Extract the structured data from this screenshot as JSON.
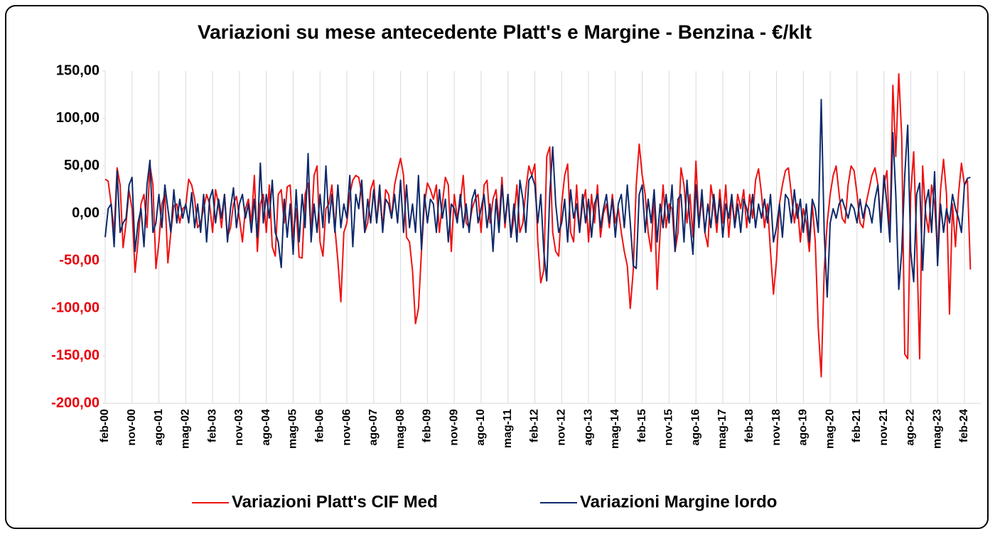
{
  "chart_data": {
    "type": "line",
    "title": "Variazioni su mese antecedente Platt's e Margine - Benzina - €/klt",
    "categories": [
      "feb-00",
      null,
      null,
      null,
      null,
      null,
      null,
      null,
      null,
      "nov-00",
      null,
      null,
      null,
      null,
      null,
      null,
      null,
      null,
      "ago-01",
      null,
      null,
      null,
      null,
      null,
      null,
      null,
      null,
      "mag-02",
      null,
      null,
      null,
      null,
      null,
      null,
      null,
      null,
      "feb-03",
      null,
      null,
      null,
      null,
      null,
      null,
      null,
      null,
      "nov-03",
      null,
      null,
      null,
      null,
      null,
      null,
      null,
      null,
      "ago-04",
      null,
      null,
      null,
      null,
      null,
      null,
      null,
      null,
      "mag-05",
      null,
      null,
      null,
      null,
      null,
      null,
      null,
      null,
      "feb-06",
      null,
      null,
      null,
      null,
      null,
      null,
      null,
      null,
      "nov-06",
      null,
      null,
      null,
      null,
      null,
      null,
      null,
      null,
      "ago-07",
      null,
      null,
      null,
      null,
      null,
      null,
      null,
      null,
      "mag-08",
      null,
      null,
      null,
      null,
      null,
      null,
      null,
      null,
      "feb-09",
      null,
      null,
      null,
      null,
      null,
      null,
      null,
      null,
      "nov-09",
      null,
      null,
      null,
      null,
      null,
      null,
      null,
      null,
      "ago-10",
      null,
      null,
      null,
      null,
      null,
      null,
      null,
      null,
      "mag-11",
      null,
      null,
      null,
      null,
      null,
      null,
      null,
      null,
      "feb-12",
      null,
      null,
      null,
      null,
      null,
      null,
      null,
      null,
      "nov-12",
      null,
      null,
      null,
      null,
      null,
      null,
      null,
      null,
      "ago-13",
      null,
      null,
      null,
      null,
      null,
      null,
      null,
      null,
      "mag-14",
      null,
      null,
      null,
      null,
      null,
      null,
      null,
      null,
      "feb-15",
      null,
      null,
      null,
      null,
      null,
      null,
      null,
      null,
      "nov-15",
      null,
      null,
      null,
      null,
      null,
      null,
      null,
      null,
      "ago-16",
      null,
      null,
      null,
      null,
      null,
      null,
      null,
      null,
      "mag-17",
      null,
      null,
      null,
      null,
      null,
      null,
      null,
      null,
      "feb-18",
      null,
      null,
      null,
      null,
      null,
      null,
      null,
      null,
      "nov-18",
      null,
      null,
      null,
      null,
      null,
      null,
      null,
      null,
      "ago-19",
      null,
      null,
      null,
      null,
      null,
      null,
      null,
      null,
      "mag-20",
      null,
      null,
      null,
      null,
      null,
      null,
      null,
      null,
      "feb-21",
      null,
      null,
      null,
      null,
      null,
      null,
      null,
      null,
      "nov-21",
      null,
      null,
      null,
      null,
      null,
      null,
      null,
      null,
      "ago-22",
      null,
      null,
      null,
      null,
      null,
      null,
      null,
      null,
      "mag-23",
      null,
      null,
      null,
      null,
      null,
      null,
      null,
      null,
      "feb-24",
      null,
      null
    ],
    "series": [
      {
        "name": "Variazioni Platt's CIF Med",
        "color": "#ee1111",
        "values": [
          36,
          34,
          10,
          -20,
          48,
          30,
          -36,
          -10,
          24,
          5,
          -62,
          -30,
          10,
          20,
          -15,
          51,
          30,
          -58,
          -30,
          10,
          20,
          -52,
          -20,
          8,
          10,
          -10,
          5,
          8,
          36,
          30,
          15,
          -15,
          -10,
          5,
          20,
          10,
          -20,
          25,
          10,
          -15,
          20,
          -25,
          -15,
          10,
          18,
          -5,
          -30,
          5,
          15,
          -10,
          40,
          -40,
          10,
          20,
          -20,
          30,
          -35,
          -45,
          20,
          25,
          -10,
          28,
          30,
          -25,
          5,
          -46,
          -47,
          20,
          32,
          -20,
          40,
          50,
          -30,
          -45,
          5,
          10,
          30,
          -15,
          -50,
          -93,
          -20,
          -10,
          20,
          35,
          40,
          38,
          20,
          -20,
          -10,
          25,
          35,
          -10,
          20,
          -15,
          25,
          20,
          -5,
          30,
          45,
          58,
          40,
          -25,
          -30,
          -60,
          -116,
          -100,
          -40,
          10,
          32,
          25,
          15,
          30,
          -20,
          10,
          38,
          30,
          -40,
          20,
          -5,
          10,
          40,
          -10,
          -15,
          5,
          15,
          20,
          -20,
          30,
          35,
          -10,
          15,
          25,
          -10,
          38,
          -15,
          20,
          -25,
          -5,
          30,
          -20,
          -10,
          25,
          50,
          40,
          52,
          -30,
          -73,
          -60,
          60,
          70,
          -20,
          -40,
          -45,
          10,
          40,
          52,
          -20,
          -30,
          30,
          -20,
          10,
          25,
          -30,
          20,
          -10,
          30,
          -25,
          0,
          10,
          -15,
          20,
          -10,
          5,
          -20,
          -40,
          -55,
          -100,
          -60,
          30,
          73,
          40,
          20,
          -20,
          -40,
          20,
          -80,
          -20,
          30,
          -15,
          10,
          5,
          -40,
          -20,
          48,
          30,
          -10,
          20,
          -25,
          55,
          -10,
          15,
          -20,
          -35,
          30,
          10,
          -20,
          25,
          -10,
          30,
          -25,
          15,
          -10,
          20,
          5,
          25,
          -15,
          20,
          -5,
          35,
          47,
          20,
          -15,
          10,
          -40,
          -85,
          -50,
          10,
          30,
          45,
          48,
          20,
          -10,
          10,
          -30,
          5,
          -10,
          -40,
          10,
          -30,
          -120,
          -172,
          -60,
          -10,
          20,
          40,
          50,
          20,
          -5,
          -10,
          30,
          50,
          45,
          20,
          -10,
          -15,
          10,
          25,
          40,
          48,
          30,
          -10,
          30,
          45,
          -25,
          135,
          60,
          147,
          80,
          -148,
          -153,
          20,
          65,
          -30,
          -153,
          50,
          0,
          -20,
          30,
          10,
          -40,
          25,
          57,
          20,
          -106,
          10,
          -35,
          20,
          53,
          30,
          35,
          -59
        ]
      },
      {
        "name": "Variazioni Margine lordo",
        "color": "#0d2a6b",
        "values": [
          -25,
          5,
          10,
          -35,
          45,
          -20,
          -10,
          -5,
          30,
          38,
          -40,
          -10,
          5,
          -35,
          30,
          56,
          -20,
          -10,
          20,
          -15,
          30,
          5,
          -20,
          25,
          -10,
          15,
          -5,
          10,
          -10,
          22,
          -15,
          10,
          -20,
          20,
          -30,
          15,
          25,
          -10,
          15,
          -5,
          20,
          -30,
          5,
          27,
          -15,
          10,
          20,
          -5,
          10,
          -20,
          15,
          -25,
          53,
          -10,
          20,
          -5,
          35,
          -20,
          -30,
          -57,
          15,
          -25,
          10,
          -43,
          25,
          -30,
          20,
          -15,
          63,
          -30,
          10,
          -20,
          20,
          -15,
          50,
          -10,
          20,
          -20,
          30,
          -15,
          10,
          -5,
          40,
          -35,
          20,
          5,
          35,
          -20,
          15,
          -10,
          25,
          -10,
          30,
          -20,
          15,
          10,
          -5,
          20,
          -10,
          35,
          -20,
          30,
          -15,
          10,
          -20,
          40,
          -38,
          20,
          -10,
          15,
          10,
          -20,
          25,
          -5,
          15,
          -30,
          10,
          5,
          -10,
          20,
          -15,
          10,
          -20,
          15,
          25,
          -10,
          5,
          20,
          -15,
          10,
          -40,
          15,
          -20,
          30,
          -10,
          20,
          -25,
          10,
          -30,
          35,
          15,
          -20,
          35,
          40,
          30,
          -10,
          20,
          -40,
          -71,
          20,
          70,
          10,
          -20,
          -10,
          15,
          -30,
          25,
          -5,
          10,
          -20,
          20,
          -10,
          15,
          -25,
          10,
          20,
          -15,
          5,
          20,
          -10,
          15,
          -25,
          10,
          20,
          -15,
          30,
          -10,
          -55,
          -58,
          20,
          30,
          -20,
          15,
          -10,
          25,
          -30,
          10,
          -15,
          20,
          -10,
          30,
          -40,
          15,
          20,
          -30,
          35,
          -10,
          -43,
          30,
          -15,
          25,
          -20,
          10,
          -15,
          20,
          -10,
          15,
          -25,
          10,
          -5,
          20,
          -15,
          10,
          -20,
          15,
          5,
          -10,
          20,
          -15,
          10,
          -5,
          15,
          -10,
          20,
          -30,
          -15,
          10,
          -25,
          20,
          15,
          -10,
          25,
          -5,
          15,
          -20,
          10,
          -30,
          15,
          5,
          -20,
          120,
          -20,
          -88,
          -10,
          5,
          -5,
          10,
          15,
          5,
          -5,
          10,
          5,
          -10,
          15,
          -5,
          10,
          5,
          -10,
          15,
          30,
          -20,
          40,
          10,
          -30,
          85,
          20,
          -80,
          -40,
          40,
          93,
          -40,
          -72,
          20,
          32,
          -60,
          10,
          25,
          -20,
          44,
          -55,
          10,
          -20,
          5,
          -10,
          20,
          5,
          -5,
          -20,
          30,
          37,
          38
        ]
      }
    ],
    "ylim": [
      -200,
      150
    ],
    "yticks": [
      {
        "value": -200,
        "label": "-200,00"
      },
      {
        "value": -150,
        "label": "-150,00"
      },
      {
        "value": -100,
        "label": "-100,00"
      },
      {
        "value": -50,
        "label": "-50,00"
      },
      {
        "value": 0,
        "label": "0,00"
      },
      {
        "value": 50,
        "label": "50,00"
      },
      {
        "value": 100,
        "label": "100,00"
      },
      {
        "value": 150,
        "label": "150,00"
      }
    ],
    "grid": true,
    "legend": "bottom"
  }
}
